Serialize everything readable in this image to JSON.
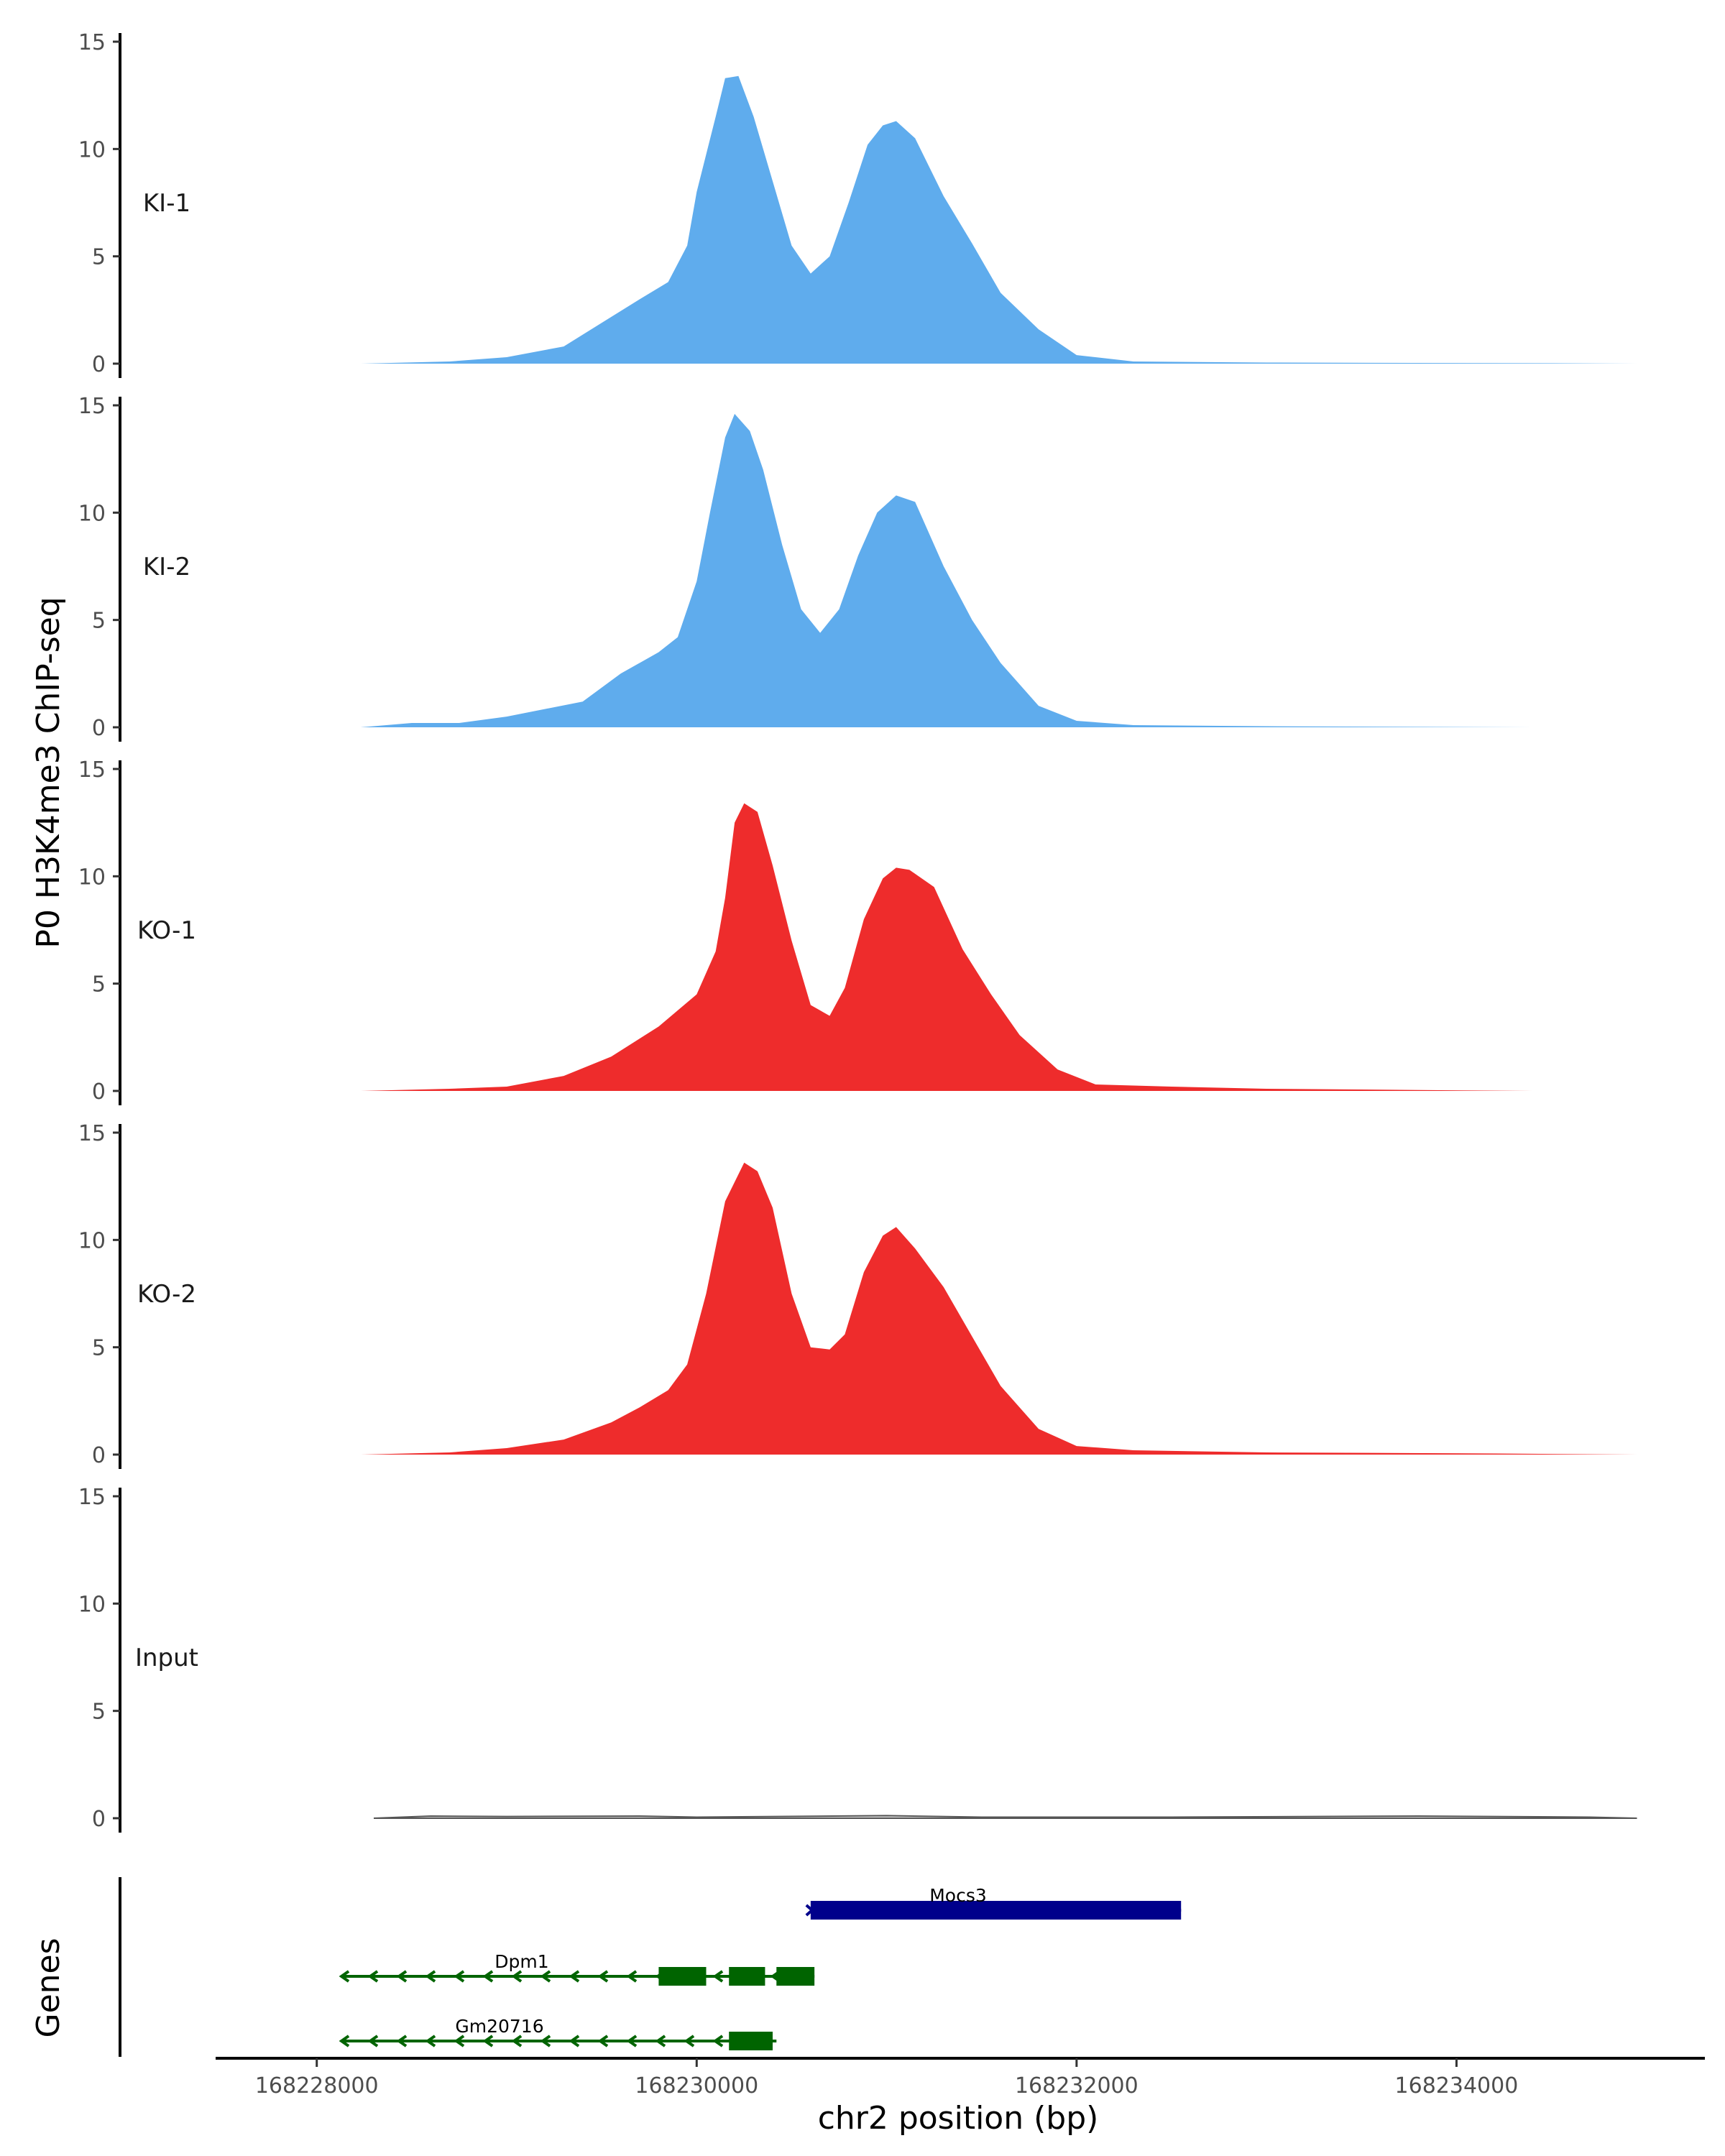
{
  "chart_data": {
    "type": "area",
    "ylabel": "P0 H3K4me3 ChIP-seq",
    "xlabel": "chr2 position (bp)",
    "genes_label": "Genes",
    "xlim": [
      168227600,
      168235300
    ],
    "ylim": [
      0,
      15
    ],
    "y_ticks": [
      0,
      5,
      10,
      15
    ],
    "x_ticks": [
      {
        "value": 168228000,
        "label": "168228000"
      },
      {
        "value": 168230000,
        "label": "168230000"
      },
      {
        "value": 168232000,
        "label": "168232000"
      },
      {
        "value": 168234000,
        "label": "168234000"
      }
    ],
    "colors": {
      "KI": "#5faced",
      "KO": "#ee2c2c",
      "Input": "#555555",
      "gene_minus": "#006400",
      "gene_plus": "#00008b"
    },
    "tracks": [
      {
        "name": "KI-1",
        "color": "#5faced",
        "points": [
          [
            168228230,
            0
          ],
          [
            168228700,
            0.1
          ],
          [
            168229000,
            0.3
          ],
          [
            168229300,
            0.8
          ],
          [
            168229500,
            1.9
          ],
          [
            168229700,
            3
          ],
          [
            168229850,
            3.8
          ],
          [
            168229950,
            5.5
          ],
          [
            168230000,
            8
          ],
          [
            168230100,
            11.5
          ],
          [
            168230150,
            13.3
          ],
          [
            168230220,
            13.4
          ],
          [
            168230300,
            11.5
          ],
          [
            168230400,
            8.5
          ],
          [
            168230500,
            5.5
          ],
          [
            168230600,
            4.2
          ],
          [
            168230700,
            5
          ],
          [
            168230800,
            7.5
          ],
          [
            168230900,
            10.2
          ],
          [
            168230980,
            11.1
          ],
          [
            168231050,
            11.3
          ],
          [
            168231150,
            10.5
          ],
          [
            168231300,
            7.8
          ],
          [
            168231450,
            5.6
          ],
          [
            168231600,
            3.3
          ],
          [
            168231800,
            1.6
          ],
          [
            168232000,
            0.4
          ],
          [
            168232300,
            0.1
          ],
          [
            168233000,
            0.05
          ],
          [
            168234500,
            0.02
          ],
          [
            168234950,
            0
          ]
        ]
      },
      {
        "name": "KI-2",
        "color": "#5faced",
        "points": [
          [
            168228230,
            0
          ],
          [
            168228500,
            0.2
          ],
          [
            168228750,
            0.2
          ],
          [
            168229000,
            0.5
          ],
          [
            168229400,
            1.2
          ],
          [
            168229600,
            2.5
          ],
          [
            168229800,
            3.5
          ],
          [
            168229900,
            4.2
          ],
          [
            168230000,
            6.8
          ],
          [
            168230070,
            10
          ],
          [
            168230150,
            13.5
          ],
          [
            168230200,
            14.6
          ],
          [
            168230280,
            13.8
          ],
          [
            168230350,
            12
          ],
          [
            168230450,
            8.5
          ],
          [
            168230550,
            5.5
          ],
          [
            168230650,
            4.4
          ],
          [
            168230750,
            5.5
          ],
          [
            168230850,
            8
          ],
          [
            168230950,
            10
          ],
          [
            168231050,
            10.8
          ],
          [
            168231150,
            10.5
          ],
          [
            168231300,
            7.5
          ],
          [
            168231450,
            5
          ],
          [
            168231600,
            3
          ],
          [
            168231800,
            1
          ],
          [
            168232000,
            0.3
          ],
          [
            168232300,
            0.1
          ],
          [
            168233000,
            0.05
          ],
          [
            168234400,
            0
          ]
        ]
      },
      {
        "name": "KO-1",
        "color": "#ee2c2c",
        "points": [
          [
            168228230,
            0
          ],
          [
            168228700,
            0.1
          ],
          [
            168229000,
            0.2
          ],
          [
            168229300,
            0.7
          ],
          [
            168229550,
            1.6
          ],
          [
            168229800,
            3
          ],
          [
            168230000,
            4.5
          ],
          [
            168230100,
            6.5
          ],
          [
            168230150,
            9
          ],
          [
            168230200,
            12.5
          ],
          [
            168230250,
            13.4
          ],
          [
            168230320,
            13
          ],
          [
            168230400,
            10.5
          ],
          [
            168230500,
            7
          ],
          [
            168230600,
            4
          ],
          [
            168230700,
            3.5
          ],
          [
            168230780,
            4.8
          ],
          [
            168230880,
            8
          ],
          [
            168230980,
            9.9
          ],
          [
            168231050,
            10.4
          ],
          [
            168231120,
            10.3
          ],
          [
            168231250,
            9.5
          ],
          [
            168231400,
            6.6
          ],
          [
            168231550,
            4.5
          ],
          [
            168231700,
            2.6
          ],
          [
            168231900,
            1
          ],
          [
            168232100,
            0.3
          ],
          [
            168232500,
            0.2
          ],
          [
            168233000,
            0.1
          ],
          [
            168234400,
            0
          ]
        ]
      },
      {
        "name": "KO-2",
        "color": "#ee2c2c",
        "points": [
          [
            168228230,
            0
          ],
          [
            168228700,
            0.1
          ],
          [
            168229000,
            0.3
          ],
          [
            168229300,
            0.7
          ],
          [
            168229550,
            1.5
          ],
          [
            168229700,
            2.2
          ],
          [
            168229850,
            3
          ],
          [
            168229950,
            4.2
          ],
          [
            168230050,
            7.5
          ],
          [
            168230150,
            11.8
          ],
          [
            168230250,
            13.6
          ],
          [
            168230320,
            13.2
          ],
          [
            168230400,
            11.5
          ],
          [
            168230500,
            7.5
          ],
          [
            168230600,
            5
          ],
          [
            168230700,
            4.9
          ],
          [
            168230780,
            5.6
          ],
          [
            168230880,
            8.5
          ],
          [
            168230980,
            10.2
          ],
          [
            168231050,
            10.6
          ],
          [
            168231150,
            9.6
          ],
          [
            168231300,
            7.8
          ],
          [
            168231450,
            5.5
          ],
          [
            168231600,
            3.2
          ],
          [
            168231800,
            1.2
          ],
          [
            168232000,
            0.4
          ],
          [
            168232300,
            0.2
          ],
          [
            168233000,
            0.1
          ],
          [
            168234200,
            0.05
          ],
          [
            168234950,
            0
          ]
        ]
      },
      {
        "name": "Input",
        "color": "#555555",
        "points": [
          [
            168228300,
            0
          ],
          [
            168228600,
            0.1
          ],
          [
            168229000,
            0.08
          ],
          [
            168229700,
            0.1
          ],
          [
            168230000,
            0.05
          ],
          [
            168231000,
            0.12
          ],
          [
            168231500,
            0.05
          ],
          [
            168232500,
            0.05
          ],
          [
            168233800,
            0.1
          ],
          [
            168234700,
            0.05
          ],
          [
            168234950,
            0
          ]
        ]
      }
    ],
    "genes": [
      {
        "name": "Mocs3",
        "strand": "+",
        "color": "#00008b",
        "start": 168230600,
        "end": 168232550,
        "row": 0,
        "exons": [
          [
            168230600,
            168232550
          ]
        ]
      },
      {
        "name": "Dpm1",
        "strand": "-",
        "color": "#006400",
        "start": 168228130,
        "end": 168230620,
        "row": 1,
        "exons": [
          [
            168229800,
            168230050
          ],
          [
            168230170,
            168230360
          ],
          [
            168230420,
            168230620
          ]
        ]
      },
      {
        "name": "Gm20716",
        "strand": "-",
        "color": "#006400",
        "start": 168228130,
        "end": 168230420,
        "row": 2,
        "exons": [
          [
            168230170,
            168230400
          ]
        ]
      }
    ]
  }
}
